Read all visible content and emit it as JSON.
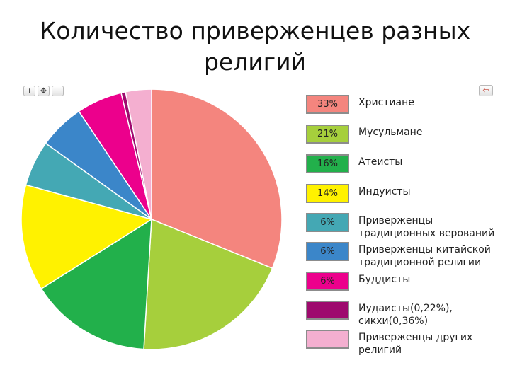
{
  "title_line1": "Количество приверженцев разных",
  "title_line2": "религий",
  "toolbar": {
    "zoom_in": "+",
    "pan": "✥",
    "zoom_out": "−",
    "back": "⇦"
  },
  "chart_data": {
    "type": "pie",
    "categories": [
      "Христиане",
      "Мусульмане",
      "Атеисты",
      "Индуисты",
      "Приверженцы традиционных верований",
      "Приверженцы китайской традиционной религии",
      "Буддисты",
      "Иудаисты(0,22%), сикхи(0,36%)",
      "Приверженцы других религий"
    ],
    "values": [
      33,
      21,
      16,
      14,
      6,
      6,
      6,
      0.58,
      3.4
    ],
    "value_labels": [
      "33%",
      "21%",
      "16%",
      "14%",
      "6%",
      "6%",
      "6%",
      "",
      ""
    ],
    "colors": [
      "#f4857e",
      "#a6cf3c",
      "#22b04b",
      "#fff200",
      "#44a8b4",
      "#3b86c9",
      "#ec008c",
      "#9e0a6e",
      "#f4afd0"
    ],
    "legend_position": "right"
  }
}
